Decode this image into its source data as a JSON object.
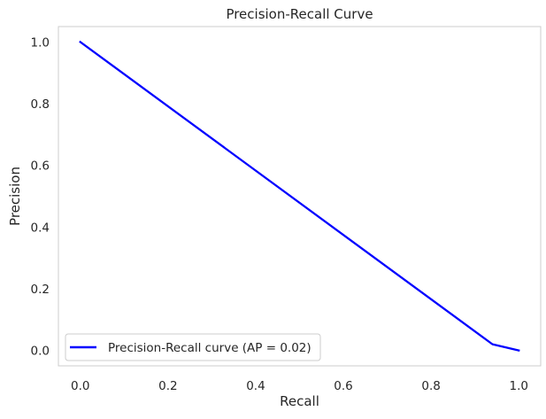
{
  "chart_data": {
    "type": "line",
    "title": "Precision-Recall Curve",
    "xlabel": "Recall",
    "ylabel": "Precision",
    "xlim": [
      -0.05,
      1.05
    ],
    "ylim": [
      -0.05,
      1.05
    ],
    "xticks": [
      0.0,
      0.2,
      0.4,
      0.6,
      0.8,
      1.0
    ],
    "xtick_labels": [
      "0.0",
      "0.2",
      "0.4",
      "0.6",
      "0.8",
      "1.0"
    ],
    "yticks": [
      0.0,
      0.2,
      0.4,
      0.6,
      0.8,
      1.0
    ],
    "ytick_labels": [
      "0.0",
      "0.2",
      "0.4",
      "0.6",
      "0.8",
      "1.0"
    ],
    "grid": false,
    "legend_position": "lower-left",
    "series": [
      {
        "name": "Precision-Recall curve (AP = 0.02)",
        "color": "#0000ff",
        "x": [
          0.0,
          0.94,
          1.0
        ],
        "y": [
          1.0,
          0.02,
          0.0
        ]
      }
    ]
  }
}
